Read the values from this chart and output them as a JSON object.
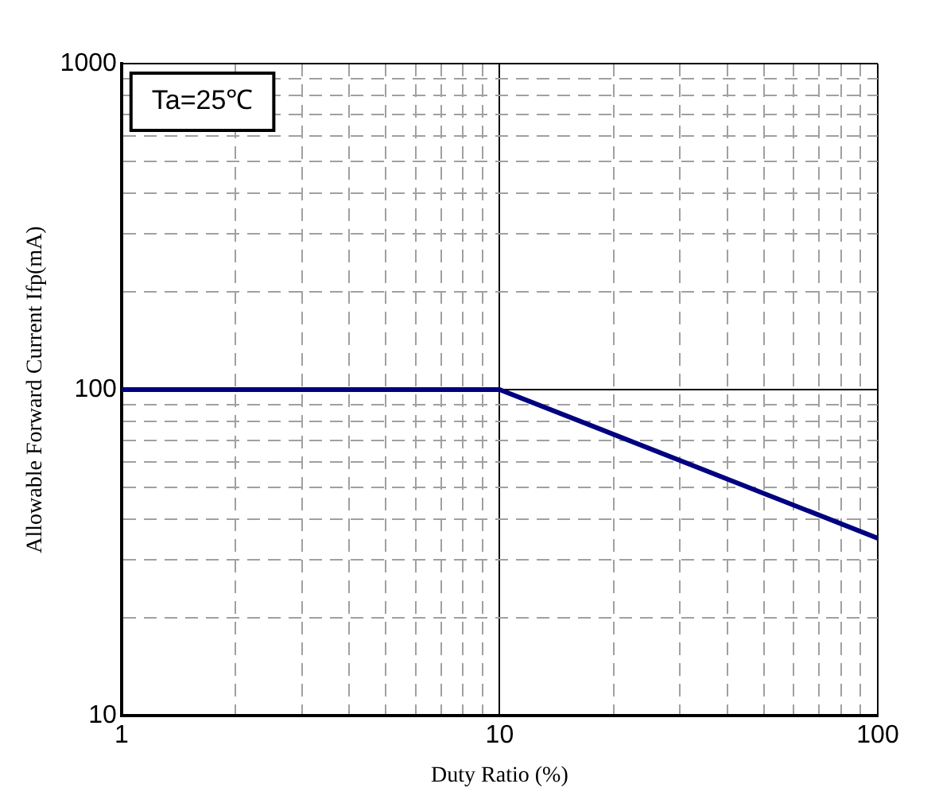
{
  "chart_data": {
    "type": "line",
    "xlabel": "Duty Ratio (%)",
    "ylabel": "Allowable Forward Current Ifp(mA)",
    "annotations": [
      "Ta=25℃"
    ],
    "series": [
      {
        "color": "#000080",
        "x": [
          1,
          10,
          100
        ],
        "values": [
          100,
          100,
          35
        ]
      }
    ],
    "log": "xy",
    "xlim": [
      1,
      100
    ],
    "xticks": [
      1,
      {
        "value": 2,
        "label": null
      },
      {
        "value": 3,
        "label": null
      },
      {
        "value": 4,
        "label": null
      },
      {
        "value": 5,
        "label": null
      },
      {
        "value": 6,
        "label": null
      },
      {
        "value": 7,
        "label": null
      },
      {
        "value": 8,
        "label": null
      },
      {
        "value": 9,
        "label": null
      },
      10,
      {
        "value": 20,
        "label": null
      },
      {
        "value": 30,
        "label": null
      },
      {
        "value": 40,
        "label": null
      },
      {
        "value": 50,
        "label": null
      },
      {
        "value": 60,
        "label": null
      },
      {
        "value": 70,
        "label": null
      },
      {
        "value": 80,
        "label": null
      },
      {
        "value": 90,
        "label": null
      },
      100
    ],
    "ylim": [
      10,
      1000
    ],
    "yticks": [
      10,
      {
        "value": 20,
        "label": null
      },
      {
        "value": 30,
        "label": null
      },
      {
        "value": 40,
        "label": null
      },
      {
        "value": 50,
        "label": null
      },
      {
        "value": 60,
        "label": null
      },
      {
        "value": 70,
        "label": null
      },
      {
        "value": 80,
        "label": null
      },
      {
        "value": 90,
        "label": null
      },
      100,
      {
        "value": 200,
        "label": null
      },
      {
        "value": 300,
        "label": null
      },
      {
        "value": 400,
        "label": null
      },
      {
        "value": 500,
        "label": null
      },
      {
        "value": 600,
        "label": null
      },
      {
        "value": 700,
        "label": null
      },
      {
        "value": 800,
        "label": null
      },
      {
        "value": 900,
        "label": null
      },
      1000
    ],
    "grid": true,
    "legend": false,
    "marker": "none",
    "line_style": "solid"
  }
}
